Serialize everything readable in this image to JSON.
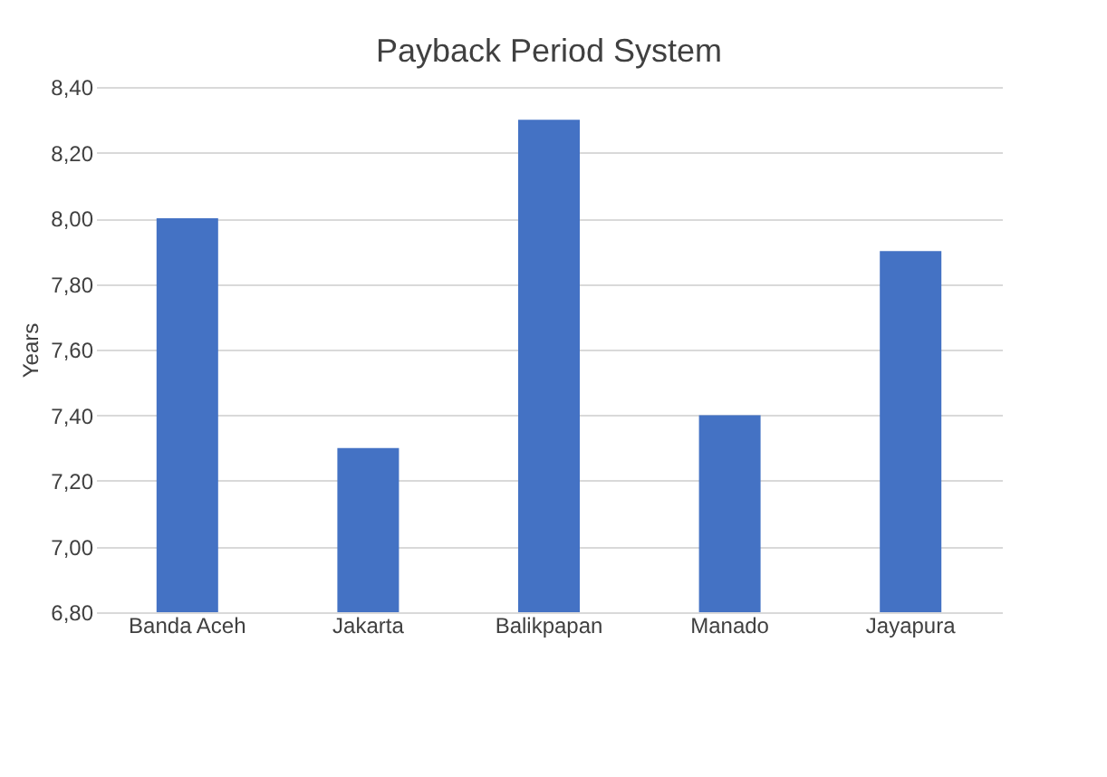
{
  "chart_data": {
    "type": "bar",
    "title": "Payback Period System",
    "ylabel": "Years",
    "categories": [
      "Banda Aceh",
      "Jakarta",
      "Balikpapan",
      "Manado",
      "Jayapura"
    ],
    "values": [
      8.0,
      7.3,
      8.3,
      7.4,
      7.9
    ],
    "color": "#4472c4",
    "ylim": [
      6.8,
      8.4
    ],
    "yticks": [
      {
        "value": 6.8,
        "label": "6,80"
      },
      {
        "value": 7.0,
        "label": "7,00"
      },
      {
        "value": 7.2,
        "label": "7,20"
      },
      {
        "value": 7.4,
        "label": "7,40"
      },
      {
        "value": 7.6,
        "label": "7,60"
      },
      {
        "value": 7.8,
        "label": "7,80"
      },
      {
        "value": 8.0,
        "label": "8,00"
      },
      {
        "value": 8.2,
        "label": "8,20"
      },
      {
        "value": 8.4,
        "label": "8,40"
      }
    ],
    "grid": "y"
  }
}
